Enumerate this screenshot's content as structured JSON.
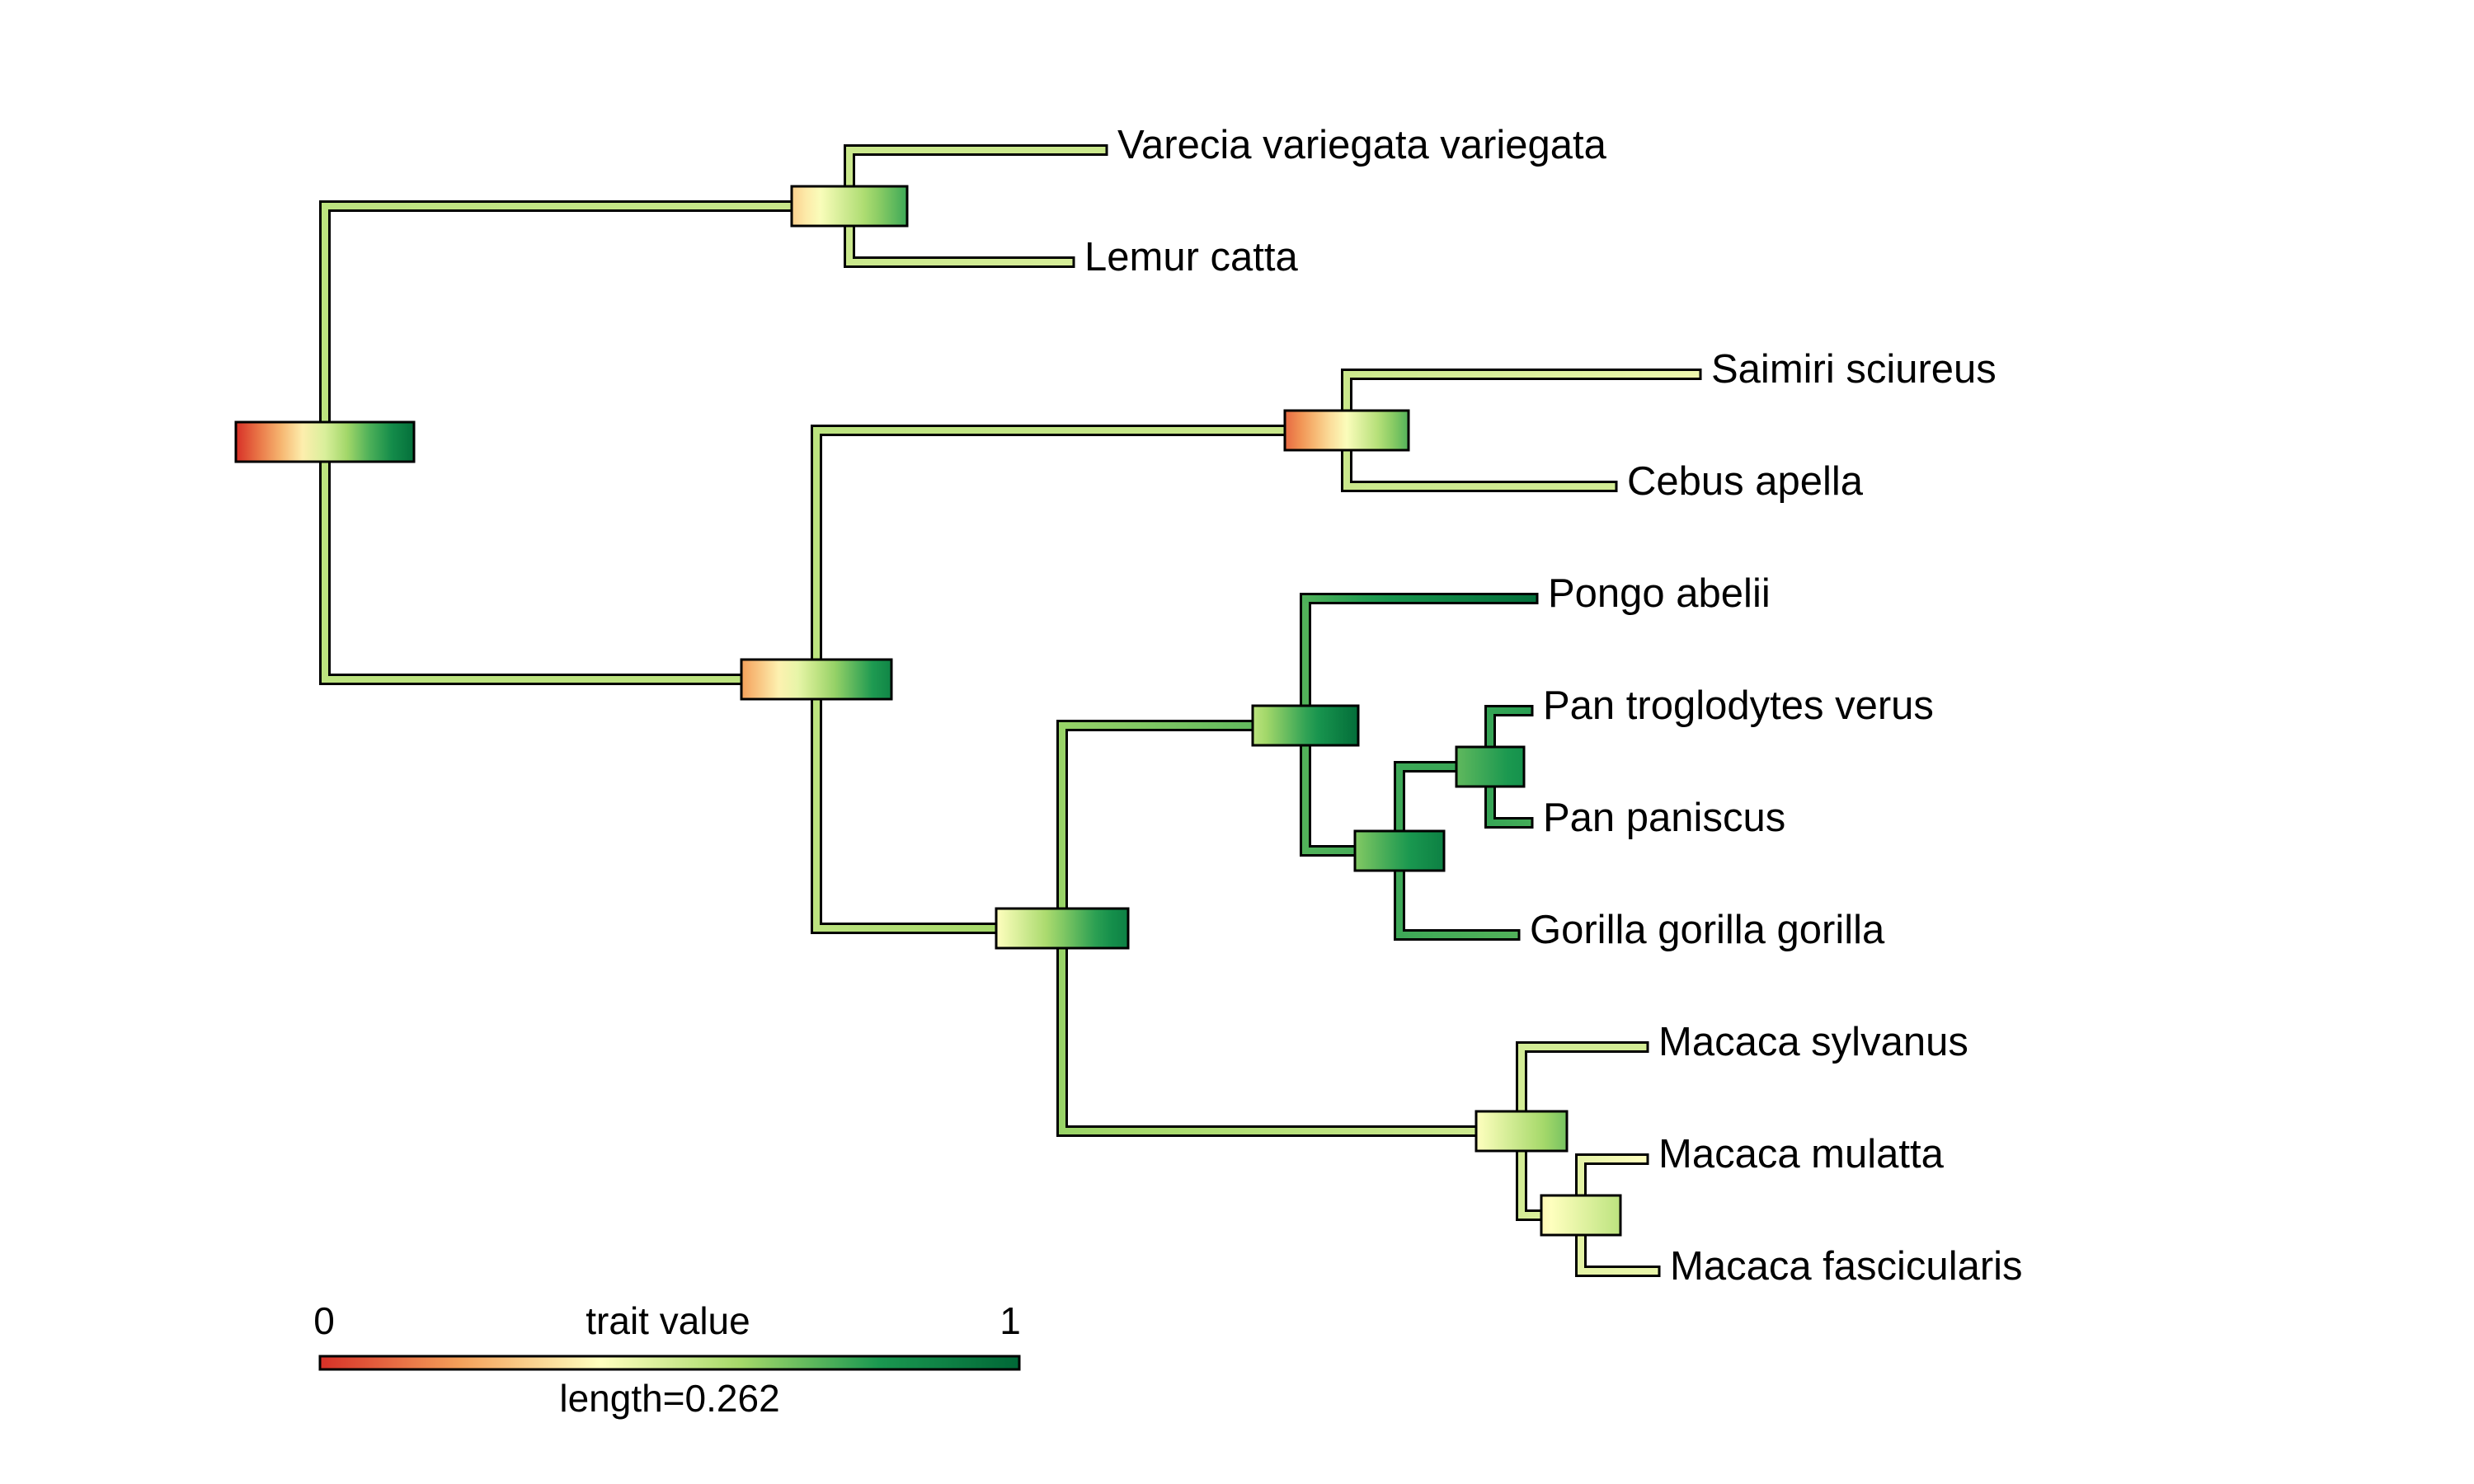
{
  "colors": {
    "scale_stops": [
      "#d73027",
      "#f4a05a",
      "#ffffbf",
      "#a6d96a",
      "#1a9850",
      "#006837"
    ],
    "outline": "#000000",
    "background": "#ffffff"
  },
  "tree": {
    "tips": [
      {
        "name": "Varecia variegata variegata",
        "trait": 0.52
      },
      {
        "name": "Lemur catta",
        "trait": 0.49
      },
      {
        "name": "Saimiri sciureus",
        "trait": 0.44
      },
      {
        "name": "Cebus apella",
        "trait": 0.5
      },
      {
        "name": "Pongo abelii",
        "trait": 0.97
      },
      {
        "name": "Pan troglodytes verus",
        "trait": 0.78
      },
      {
        "name": "Pan paniscus",
        "trait": 0.74
      },
      {
        "name": "Gorilla gorilla gorilla",
        "trait": 0.72
      },
      {
        "name": "Macaca sylvanus",
        "trait": 0.5
      },
      {
        "name": "Macaca mulatta",
        "trait": 0.4
      },
      {
        "name": "Macaca fascicularis",
        "trait": 0.45
      }
    ],
    "nodes": [
      {
        "id": "root",
        "trait_range": [
          0.0,
          0.97
        ],
        "trait": 0.55
      },
      {
        "id": "strepsirrhini",
        "trait_range": [
          0.3,
          0.75
        ],
        "trait": 0.52
      },
      {
        "id": "anthropoidea",
        "trait_range": [
          0.2,
          0.88
        ],
        "trait": 0.55
      },
      {
        "id": "platyrrhini",
        "trait_range": [
          0.1,
          0.72
        ],
        "trait": 0.52
      },
      {
        "id": "catarrhini",
        "trait_range": [
          0.4,
          0.9
        ],
        "trait": 0.62
      },
      {
        "id": "hominidae",
        "trait_range": [
          0.55,
          0.98
        ],
        "trait": 0.72
      },
      {
        "id": "homininae",
        "trait_range": [
          0.65,
          0.9
        ],
        "trait": 0.75
      },
      {
        "id": "pan",
        "trait_range": [
          0.7,
          0.83
        ],
        "trait": 0.76
      },
      {
        "id": "macaca",
        "trait_range": [
          0.4,
          0.67
        ],
        "trait": 0.5
      },
      {
        "id": "macaca-inner",
        "trait_range": [
          0.38,
          0.55
        ],
        "trait": 0.46
      }
    ]
  },
  "legend": {
    "title": "trait value",
    "min_label": "0",
    "max_label": "1",
    "scale_label": "length=0.262",
    "range": [
      0,
      1
    ]
  }
}
